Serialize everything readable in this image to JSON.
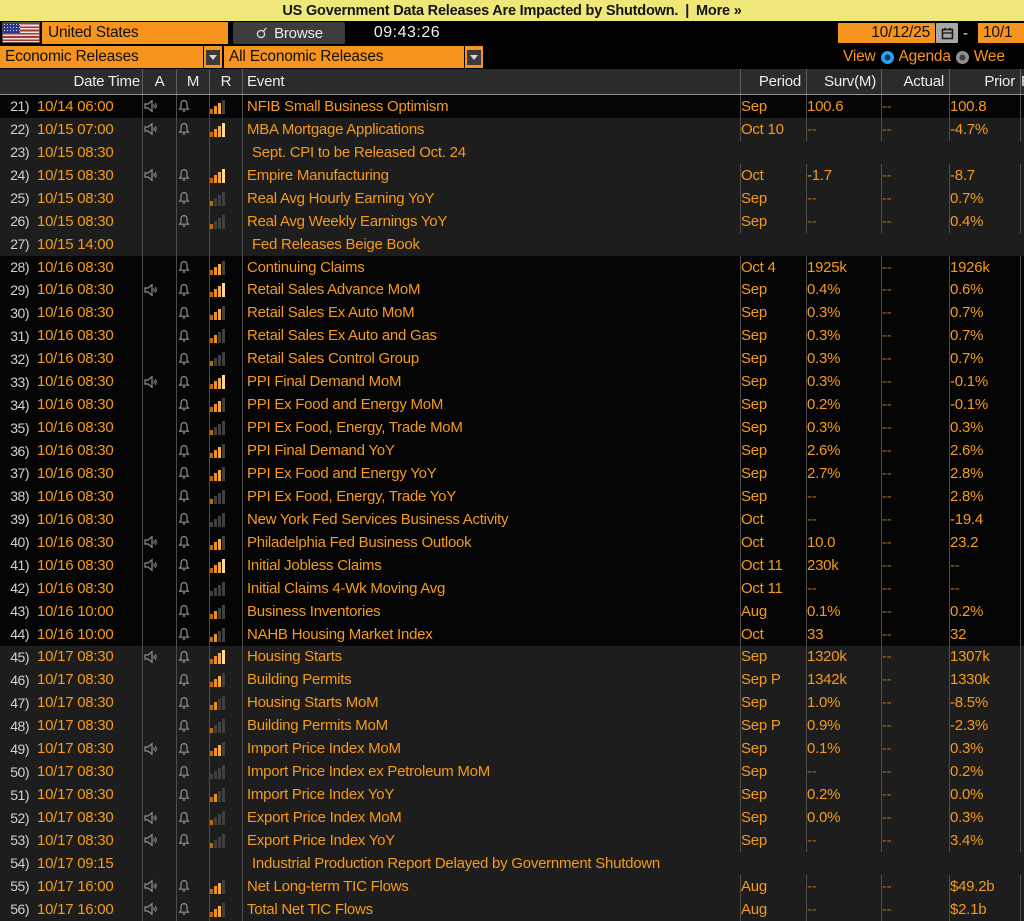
{
  "banner": {
    "text": "US Government Data Releases Are Impacted by Shutdown.",
    "sep": "|",
    "more_label": "More »"
  },
  "toolbar": {
    "country": "United States",
    "browse_label": "Browse",
    "time": "09:43:26",
    "date_from": "10/12/25",
    "date_separator": "-",
    "date_to_visible": "10/1"
  },
  "filters": {
    "category": "Economic Releases",
    "subcategory": "All Economic Releases",
    "view_label": "View",
    "view_options": [
      {
        "label": "Agenda",
        "selected": true
      },
      {
        "label": "Wee",
        "selected": false
      }
    ]
  },
  "colors": {
    "banner_yellow": "#efe879",
    "amber_text": "#f59a1d",
    "amber_field": "#f7941e",
    "dim_amber": "#a4661c",
    "radio_blue": "#2f9ff2",
    "group_dark": "#050505",
    "group_light": "#1d1d1d"
  },
  "icon_names": [
    "us-flag-icon",
    "browse-magnifier-icon",
    "calendar-icon",
    "dropdown-arrow-icon",
    "speaker-icon",
    "bell-icon",
    "relevance-bars-icon"
  ],
  "table": {
    "headers": {
      "date_time": "Date Time",
      "a": "A",
      "m": "M",
      "r": "R",
      "event": "Event",
      "period": "Period",
      "surv": "Surv(M)",
      "actual": "Actual",
      "prior": "Prior",
      "rev": "R"
    },
    "rows": [
      {
        "num": "21)",
        "dt": "10/14 06:00",
        "a": true,
        "bell": true,
        "rel": 3,
        "ev": "NFIB Small Business Optimism",
        "per": "Sep",
        "surv": "100.6",
        "act": "--",
        "pri": "100.8",
        "g": 0
      },
      {
        "num": "22)",
        "dt": "10/15 07:00",
        "a": true,
        "bell": true,
        "rel": 4,
        "ev": "MBA Mortgage Applications",
        "per": "Oct 10",
        "surv": "--",
        "act": "--",
        "pri": "-4.7%",
        "g": 1
      },
      {
        "num": "23)",
        "dt": "10/15 08:30",
        "a": false,
        "bell": false,
        "rel": null,
        "ev": "Sept. CPI to be Released Oct. 24",
        "per": "",
        "surv": "",
        "act": "",
        "pri": "",
        "g": 1,
        "note": true
      },
      {
        "num": "24)",
        "dt": "10/15 08:30",
        "a": true,
        "bell": true,
        "rel": 4,
        "ev": "Empire Manufacturing",
        "per": "Oct",
        "surv": "-1.7",
        "act": "--",
        "pri": "-8.7",
        "g": 1
      },
      {
        "num": "25)",
        "dt": "10/15 08:30",
        "a": false,
        "bell": true,
        "rel": 1,
        "ev": "Real Avg Hourly Earning YoY",
        "per": "Sep",
        "surv": "--",
        "act": "--",
        "pri": "0.7%",
        "g": 1
      },
      {
        "num": "26)",
        "dt": "10/15 08:30",
        "a": false,
        "bell": true,
        "rel": 1,
        "ev": "Real Avg Weekly Earnings YoY",
        "per": "Sep",
        "surv": "--",
        "act": "--",
        "pri": "0.4%",
        "g": 1
      },
      {
        "num": "27)",
        "dt": "10/15 14:00",
        "a": false,
        "bell": false,
        "rel": null,
        "ev": "Fed Releases Beige Book",
        "per": "",
        "surv": "",
        "act": "",
        "pri": "",
        "g": 1,
        "note": true
      },
      {
        "num": "28)",
        "dt": "10/16 08:30",
        "a": false,
        "bell": true,
        "rel": 3,
        "ev": "Continuing Claims",
        "per": "Oct 4",
        "surv": "1925k",
        "act": "--",
        "pri": "1926k",
        "g": 2
      },
      {
        "num": "29)",
        "dt": "10/16 08:30",
        "a": true,
        "bell": true,
        "rel": 4,
        "ev": "Retail Sales Advance MoM",
        "per": "Sep",
        "surv": "0.4%",
        "act": "--",
        "pri": "0.6%",
        "g": 2
      },
      {
        "num": "30)",
        "dt": "10/16 08:30",
        "a": false,
        "bell": true,
        "rel": 3,
        "ev": "Retail Sales Ex Auto MoM",
        "per": "Sep",
        "surv": "0.3%",
        "act": "--",
        "pri": "0.7%",
        "g": 2
      },
      {
        "num": "31)",
        "dt": "10/16 08:30",
        "a": false,
        "bell": true,
        "rel": 2,
        "ev": "Retail Sales Ex Auto and Gas",
        "per": "Sep",
        "surv": "0.3%",
        "act": "--",
        "pri": "0.7%",
        "g": 2
      },
      {
        "num": "32)",
        "dt": "10/16 08:30",
        "a": false,
        "bell": true,
        "rel": 1,
        "ev": "Retail Sales Control Group",
        "per": "Sep",
        "surv": "0.3%",
        "act": "--",
        "pri": "0.7%",
        "g": 2
      },
      {
        "num": "33)",
        "dt": "10/16 08:30",
        "a": true,
        "bell": true,
        "rel": 4,
        "ev": "PPI Final Demand MoM",
        "per": "Sep",
        "surv": "0.3%",
        "act": "--",
        "pri": "-0.1%",
        "g": 2
      },
      {
        "num": "34)",
        "dt": "10/16 08:30",
        "a": false,
        "bell": true,
        "rel": 3,
        "ev": "PPI Ex Food and Energy MoM",
        "per": "Sep",
        "surv": "0.2%",
        "act": "--",
        "pri": "-0.1%",
        "g": 2
      },
      {
        "num": "35)",
        "dt": "10/16 08:30",
        "a": false,
        "bell": true,
        "rel": 1,
        "ev": "PPI Ex Food, Energy, Trade MoM",
        "per": "Sep",
        "surv": "0.3%",
        "act": "--",
        "pri": "0.3%",
        "g": 2
      },
      {
        "num": "36)",
        "dt": "10/16 08:30",
        "a": false,
        "bell": true,
        "rel": 3,
        "ev": "PPI Final Demand YoY",
        "per": "Sep",
        "surv": "2.6%",
        "act": "--",
        "pri": "2.6%",
        "g": 2
      },
      {
        "num": "37)",
        "dt": "10/16 08:30",
        "a": false,
        "bell": true,
        "rel": 3,
        "ev": "PPI Ex Food and Energy YoY",
        "per": "Sep",
        "surv": "2.7%",
        "act": "--",
        "pri": "2.8%",
        "g": 2
      },
      {
        "num": "38)",
        "dt": "10/16 08:30",
        "a": false,
        "bell": true,
        "rel": 1,
        "ev": "PPI Ex Food, Energy, Trade YoY",
        "per": "Sep",
        "surv": "--",
        "act": "--",
        "pri": "2.8%",
        "g": 2
      },
      {
        "num": "39)",
        "dt": "10/16 08:30",
        "a": false,
        "bell": true,
        "rel": 0,
        "ev": "New York Fed Services Business Activity",
        "per": "Oct",
        "surv": "--",
        "act": "--",
        "pri": "-19.4",
        "g": 2
      },
      {
        "num": "40)",
        "dt": "10/16 08:30",
        "a": true,
        "bell": true,
        "rel": 3,
        "ev": "Philadelphia Fed Business Outlook",
        "per": "Oct",
        "surv": "10.0",
        "act": "--",
        "pri": "23.2",
        "g": 2
      },
      {
        "num": "41)",
        "dt": "10/16 08:30",
        "a": true,
        "bell": true,
        "rel": 4,
        "ev": "Initial Jobless Claims",
        "per": "Oct 11",
        "surv": "230k",
        "act": "--",
        "pri": "--",
        "g": 2
      },
      {
        "num": "42)",
        "dt": "10/16 08:30",
        "a": false,
        "bell": true,
        "rel": 0,
        "ev": "Initial Claims 4-Wk Moving Avg",
        "per": "Oct 11",
        "surv": "--",
        "act": "--",
        "pri": "--",
        "g": 2
      },
      {
        "num": "43)",
        "dt": "10/16 10:00",
        "a": false,
        "bell": true,
        "rel": 2,
        "ev": "Business Inventories",
        "per": "Aug",
        "surv": "0.1%",
        "act": "--",
        "pri": "0.2%",
        "g": 2
      },
      {
        "num": "44)",
        "dt": "10/16 10:00",
        "a": false,
        "bell": true,
        "rel": 2,
        "ev": "NAHB Housing Market Index",
        "per": "Oct",
        "surv": "33",
        "act": "--",
        "pri": "32",
        "g": 2
      },
      {
        "num": "45)",
        "dt": "10/17 08:30",
        "a": true,
        "bell": true,
        "rel": 4,
        "ev": "Housing Starts",
        "per": "Sep",
        "surv": "1320k",
        "act": "--",
        "pri": "1307k",
        "g": 3
      },
      {
        "num": "46)",
        "dt": "10/17 08:30",
        "a": false,
        "bell": true,
        "rel": 3,
        "ev": "Building Permits",
        "per": "Sep P",
        "surv": "1342k",
        "act": "--",
        "pri": "1330k",
        "g": 3
      },
      {
        "num": "47)",
        "dt": "10/17 08:30",
        "a": false,
        "bell": true,
        "rel": 2,
        "ev": "Housing Starts MoM",
        "per": "Sep",
        "surv": "1.0%",
        "act": "--",
        "pri": "-8.5%",
        "g": 3
      },
      {
        "num": "48)",
        "dt": "10/17 08:30",
        "a": false,
        "bell": true,
        "rel": 1,
        "ev": "Building Permits MoM",
        "per": "Sep P",
        "surv": "0.9%",
        "act": "--",
        "pri": "-2.3%",
        "g": 3
      },
      {
        "num": "49)",
        "dt": "10/17 08:30",
        "a": true,
        "bell": true,
        "rel": 3,
        "ev": "Import Price Index MoM",
        "per": "Sep",
        "surv": "0.1%",
        "act": "--",
        "pri": "0.3%",
        "g": 3
      },
      {
        "num": "50)",
        "dt": "10/17 08:30",
        "a": false,
        "bell": true,
        "rel": 0,
        "ev": "Import Price Index ex Petroleum MoM",
        "per": "Sep",
        "surv": "--",
        "act": "--",
        "pri": "0.2%",
        "g": 3
      },
      {
        "num": "51)",
        "dt": "10/17 08:30",
        "a": false,
        "bell": true,
        "rel": 2,
        "ev": "Import Price Index YoY",
        "per": "Sep",
        "surv": "0.2%",
        "act": "--",
        "pri": "0.0%",
        "g": 3
      },
      {
        "num": "52)",
        "dt": "10/17 08:30",
        "a": true,
        "bell": true,
        "rel": 1,
        "ev": "Export Price Index MoM",
        "per": "Sep",
        "surv": "0.0%",
        "act": "--",
        "pri": "0.3%",
        "g": 3
      },
      {
        "num": "53)",
        "dt": "10/17 08:30",
        "a": true,
        "bell": true,
        "rel": 1,
        "ev": "Export Price Index YoY",
        "per": "Sep",
        "surv": "--",
        "act": "--",
        "pri": "3.4%",
        "g": 3
      },
      {
        "num": "54)",
        "dt": "10/17 09:15",
        "a": false,
        "bell": false,
        "rel": null,
        "ev": "Industrial Production Report Delayed by Government Shutdown",
        "per": "",
        "surv": "",
        "act": "",
        "pri": "",
        "g": 3,
        "note": true
      },
      {
        "num": "55)",
        "dt": "10/17 16:00",
        "a": true,
        "bell": true,
        "rel": 3,
        "ev": "Net Long-term TIC Flows",
        "per": "Aug",
        "surv": "--",
        "act": "--",
        "pri": "$49.2b",
        "g": 3
      },
      {
        "num": "56)",
        "dt": "10/17 16:00",
        "a": true,
        "bell": true,
        "rel": 3,
        "ev": "Total Net TIC Flows",
        "per": "Aug",
        "surv": "--",
        "act": "--",
        "pri": "$2.1b",
        "g": 3
      }
    ]
  }
}
